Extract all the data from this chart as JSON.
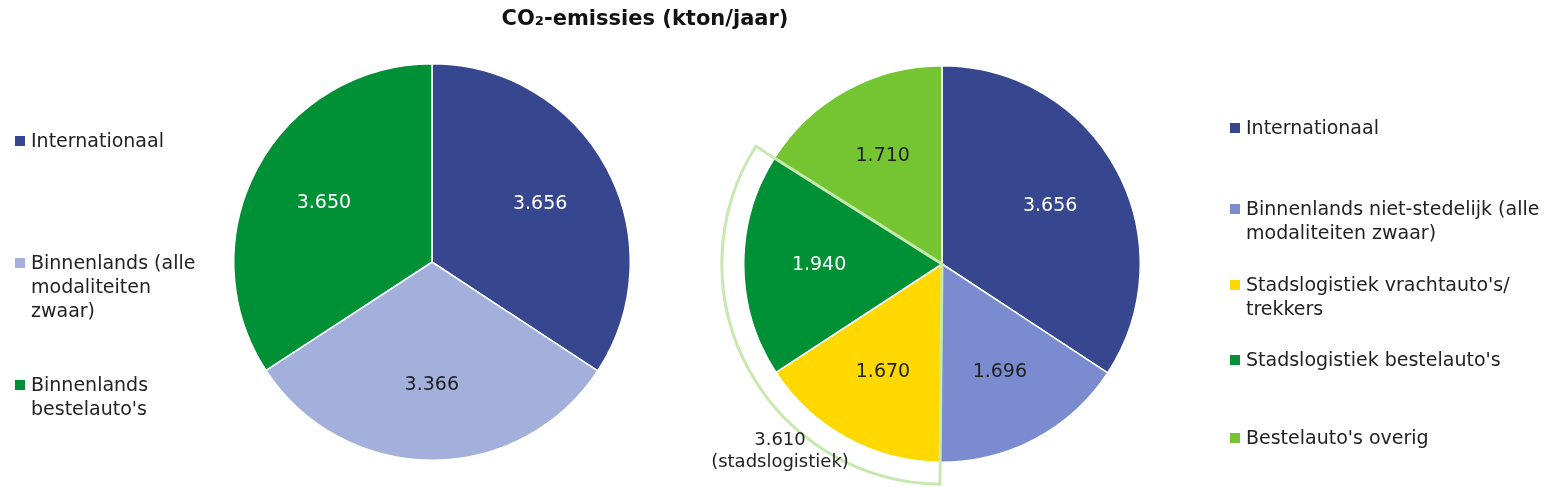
{
  "chart_data": [
    {
      "type": "pie",
      "title": "CO₂-emissies (kton/jaar)",
      "categories": [
        "Internationaal",
        "Binnenlands (alle modaliteiten zwaar)",
        "Binnenlands bestelauto's"
      ],
      "values": [
        3656,
        3366,
        3650
      ],
      "value_labels": [
        "3.656",
        "3.366",
        "3.650"
      ],
      "colors": [
        "#36468f",
        "#a3b0dc",
        "#009035"
      ],
      "legend": "left"
    },
    {
      "type": "pie",
      "categories": [
        "Internationaal",
        "Binnenlands niet-stedelijk (alle modaliteiten zwaar)",
        "Stadslogistiek vrachtauto's/ trekkers",
        "Stadslogistiek bestelauto's",
        "Bestelauto's overig"
      ],
      "values": [
        3656,
        1696,
        1670,
        1940,
        1710
      ],
      "value_labels": [
        "3.656",
        "1.696",
        "1.670",
        "1.940",
        "1.710"
      ],
      "colors": [
        "#36468f",
        "#7a8ccf",
        "#ffd800",
        "#009035",
        "#74c531"
      ],
      "legend": "right",
      "annotations": [
        "3.610 (stadslogistiek)"
      ]
    }
  ]
}
